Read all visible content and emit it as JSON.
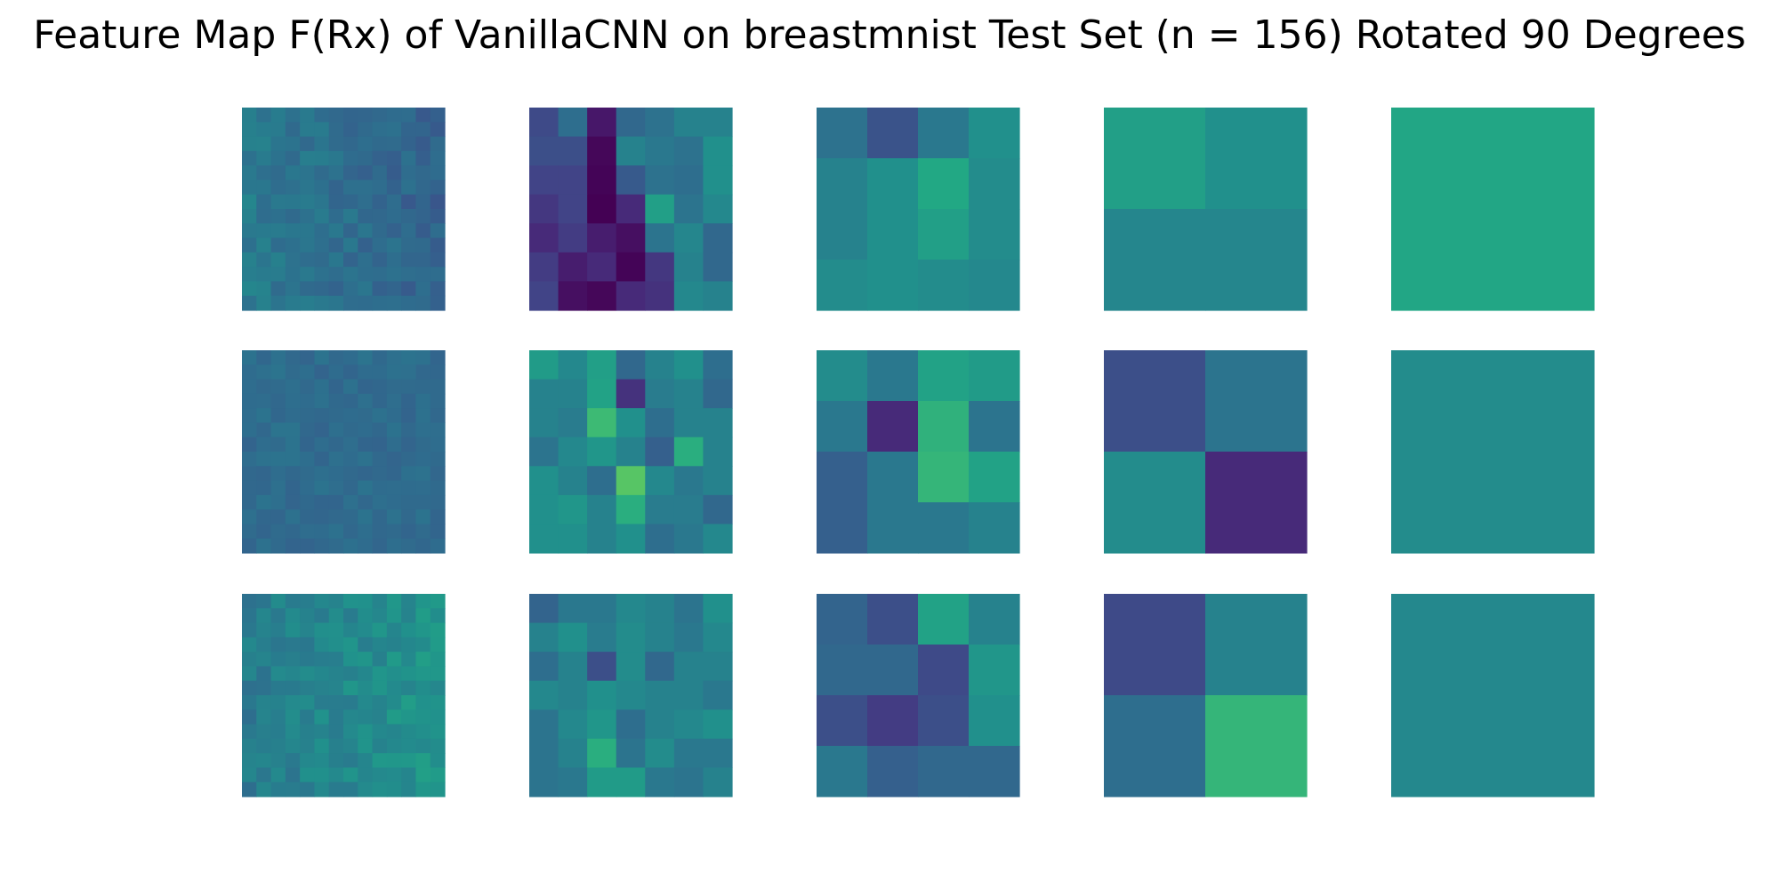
{
  "title": "Feature Map F(Rx) of VanillaCNN on breastmnist Test Set (n = 156) Rotated 90 Degrees",
  "chart_data": {
    "type": "heatmap",
    "title": "Feature Map F(Rx) of VanillaCNN on breastmnist Test Set (n = 156) Rotated 90 Degrees",
    "colormap": "viridis",
    "axes": "off",
    "layout": {
      "rows": 3,
      "cols": 5
    },
    "panels": [
      {
        "row": 0,
        "col": 0,
        "grid": [
          14,
          14
        ],
        "mean": 0.45,
        "spread": 0.06,
        "right_bias": -0.12
      },
      {
        "row": 0,
        "col": 1,
        "grid": [
          7,
          7
        ],
        "values": [
          [
            0.28,
            0.45,
            0.08,
            0.42,
            0.47,
            0.55,
            0.55
          ],
          [
            0.3,
            0.3,
            0.02,
            0.55,
            0.5,
            0.47,
            0.62
          ],
          [
            0.25,
            0.25,
            0.01,
            0.35,
            0.47,
            0.45,
            0.62
          ],
          [
            0.2,
            0.25,
            0.0,
            0.15,
            0.7,
            0.48,
            0.58
          ],
          [
            0.15,
            0.22,
            0.1,
            0.05,
            0.48,
            0.57,
            0.42
          ],
          [
            0.22,
            0.1,
            0.15,
            0.01,
            0.2,
            0.55,
            0.42
          ],
          [
            0.25,
            0.05,
            0.02,
            0.15,
            0.18,
            0.58,
            0.55
          ]
        ]
      },
      {
        "row": 0,
        "col": 2,
        "grid": [
          4,
          4
        ],
        "values": [
          [
            0.47,
            0.32,
            0.5,
            0.62
          ],
          [
            0.55,
            0.62,
            0.75,
            0.6
          ],
          [
            0.55,
            0.62,
            0.7,
            0.6
          ],
          [
            0.6,
            0.62,
            0.6,
            0.58
          ]
        ]
      },
      {
        "row": 0,
        "col": 3,
        "grid": [
          2,
          2
        ],
        "values": [
          [
            0.7,
            0.62
          ],
          [
            0.57,
            0.57
          ]
        ]
      },
      {
        "row": 0,
        "col": 4,
        "grid": [
          1,
          1
        ],
        "values": [
          [
            0.74
          ]
        ]
      },
      {
        "row": 1,
        "col": 0,
        "grid": [
          14,
          14
        ],
        "mean": 0.44,
        "spread": 0.04,
        "right_bias": 0.0
      },
      {
        "row": 1,
        "col": 1,
        "grid": [
          7,
          7
        ],
        "values": [
          [
            0.68,
            0.58,
            0.7,
            0.42,
            0.55,
            0.62,
            0.45
          ],
          [
            0.55,
            0.55,
            0.72,
            0.18,
            0.52,
            0.55,
            0.42
          ],
          [
            0.55,
            0.52,
            0.85,
            0.62,
            0.45,
            0.55,
            0.55
          ],
          [
            0.48,
            0.58,
            0.65,
            0.55,
            0.38,
            0.78,
            0.55
          ],
          [
            0.62,
            0.55,
            0.45,
            0.92,
            0.58,
            0.5,
            0.55
          ],
          [
            0.62,
            0.65,
            0.55,
            0.78,
            0.52,
            0.52,
            0.42
          ],
          [
            0.62,
            0.62,
            0.55,
            0.62,
            0.45,
            0.5,
            0.58
          ]
        ]
      },
      {
        "row": 1,
        "col": 2,
        "grid": [
          4,
          4
        ],
        "values": [
          [
            0.6,
            0.5,
            0.72,
            0.68
          ],
          [
            0.5,
            0.15,
            0.8,
            0.48
          ],
          [
            0.38,
            0.5,
            0.82,
            0.72
          ],
          [
            0.38,
            0.5,
            0.5,
            0.55
          ]
        ]
      },
      {
        "row": 1,
        "col": 3,
        "grid": [
          2,
          2
        ],
        "values": [
          [
            0.3,
            0.48
          ],
          [
            0.6,
            0.15
          ]
        ]
      },
      {
        "row": 1,
        "col": 4,
        "grid": [
          1,
          1
        ],
        "values": [
          [
            0.6
          ]
        ]
      },
      {
        "row": 2,
        "col": 0,
        "grid": [
          14,
          14
        ],
        "mean": 0.58,
        "spread": 0.07,
        "right_bias": 0.12
      },
      {
        "row": 2,
        "col": 1,
        "grid": [
          7,
          7
        ],
        "values": [
          [
            0.4,
            0.5,
            0.5,
            0.58,
            0.55,
            0.48,
            0.62
          ],
          [
            0.55,
            0.62,
            0.52,
            0.6,
            0.55,
            0.5,
            0.58
          ],
          [
            0.45,
            0.55,
            0.3,
            0.6,
            0.42,
            0.55,
            0.55
          ],
          [
            0.58,
            0.55,
            0.62,
            0.58,
            0.55,
            0.55,
            0.5
          ],
          [
            0.48,
            0.58,
            0.65,
            0.45,
            0.55,
            0.58,
            0.62
          ],
          [
            0.48,
            0.55,
            0.78,
            0.48,
            0.6,
            0.5,
            0.5
          ],
          [
            0.48,
            0.5,
            0.68,
            0.68,
            0.5,
            0.48,
            0.55
          ]
        ]
      },
      {
        "row": 2,
        "col": 2,
        "grid": [
          4,
          4
        ],
        "values": [
          [
            0.4,
            0.3,
            0.72,
            0.55
          ],
          [
            0.42,
            0.42,
            0.28,
            0.65
          ],
          [
            0.3,
            0.22,
            0.3,
            0.62
          ],
          [
            0.5,
            0.38,
            0.42,
            0.42
          ]
        ]
      },
      {
        "row": 2,
        "col": 3,
        "grid": [
          2,
          2
        ],
        "values": [
          [
            0.28,
            0.55
          ],
          [
            0.45,
            0.82
          ]
        ]
      },
      {
        "row": 2,
        "col": 4,
        "grid": [
          1,
          1
        ],
        "values": [
          [
            0.58
          ]
        ]
      }
    ]
  }
}
